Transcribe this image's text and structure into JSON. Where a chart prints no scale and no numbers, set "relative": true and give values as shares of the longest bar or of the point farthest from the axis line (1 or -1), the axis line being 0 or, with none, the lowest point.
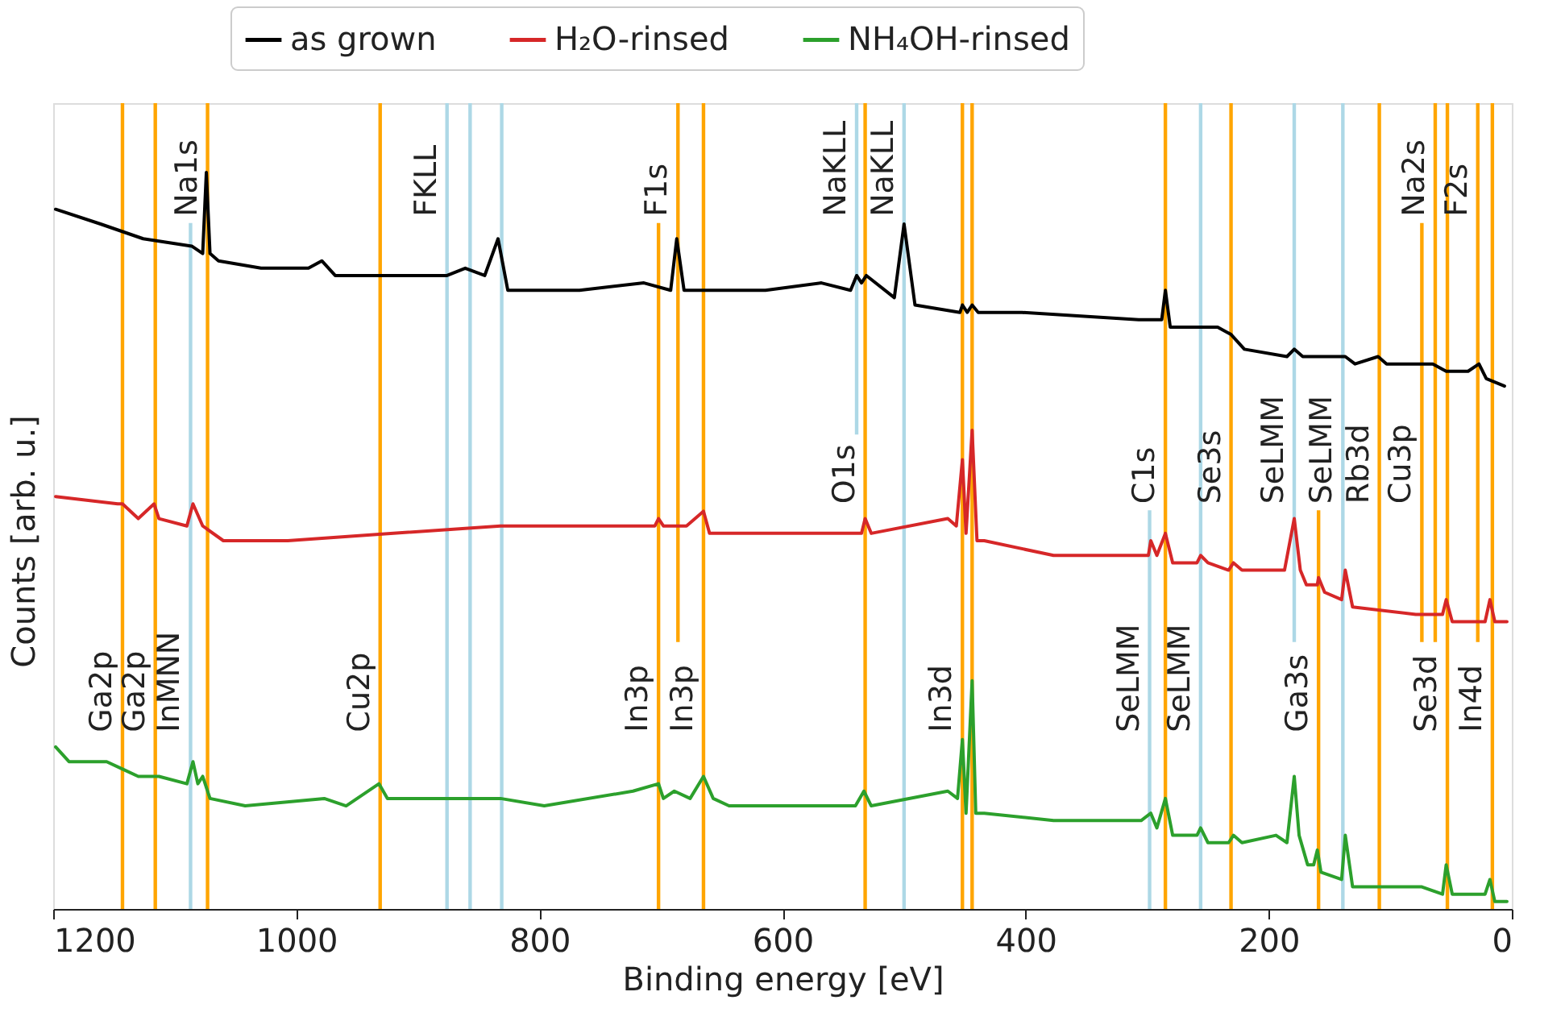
{
  "chart_data": {
    "type": "line",
    "relative": true,
    "xlabel": "Binding energy [eV]",
    "ylabel": "Counts [arb. u.]",
    "xlim": [
      1200,
      0
    ],
    "xticks": [
      1200,
      1000,
      800,
      600,
      400,
      200,
      0
    ],
    "grid": false,
    "legend": "top",
    "tick_labels": "x",
    "line_style": "solid",
    "marker": "none",
    "series": [
      {
        "name": "as grown",
        "color": "#000000",
        "x": [
          1198,
          1161,
          1126,
          1086,
          1077,
          1074,
          1071,
          1064,
          1029,
          990,
          979,
          968,
          920,
          876,
          861,
          845,
          834,
          826,
          767,
          714,
          692,
          687,
          681,
          614,
          568,
          544,
          539,
          535,
          531,
          508,
          500,
          491,
          454,
          452,
          448,
          444,
          439,
          403,
          307,
          288,
          285,
          281,
          242,
          231,
          220,
          185,
          179,
          172,
          137,
          129,
          110,
          103,
          65,
          54,
          36,
          27,
          21,
          6
        ],
        "values": [
          0.95,
          0.93,
          0.91,
          0.9,
          0.89,
          1.0,
          0.89,
          0.88,
          0.87,
          0.87,
          0.88,
          0.86,
          0.86,
          0.86,
          0.87,
          0.86,
          0.91,
          0.84,
          0.84,
          0.85,
          0.84,
          0.91,
          0.84,
          0.84,
          0.85,
          0.84,
          0.86,
          0.85,
          0.86,
          0.83,
          0.93,
          0.82,
          0.81,
          0.82,
          0.81,
          0.82,
          0.81,
          0.81,
          0.8,
          0.8,
          0.84,
          0.79,
          0.79,
          0.78,
          0.76,
          0.75,
          0.76,
          0.75,
          0.75,
          0.74,
          0.75,
          0.74,
          0.74,
          0.73,
          0.73,
          0.74,
          0.72,
          0.71
        ]
      },
      {
        "name": "H₂O-rinsed",
        "color": "#d62728",
        "x": [
          1198,
          1147,
          1143,
          1130,
          1117,
          1113,
          1090,
          1085,
          1077,
          1060,
          1007,
          920,
          832,
          745,
          705,
          702,
          698,
          679,
          665,
          660,
          614,
          535,
          532,
          527,
          464,
          457,
          452,
          449,
          444,
          440,
          434,
          377,
          299,
          297,
          292,
          285,
          279,
          259,
          256,
          250,
          233,
          229,
          222,
          187,
          179,
          174,
          169,
          160,
          159,
          154,
          140,
          137,
          131,
          79,
          70,
          57,
          54,
          49,
          22,
          18,
          14,
          4
        ],
        "values": [
          0.56,
          0.55,
          0.55,
          0.53,
          0.55,
          0.53,
          0.52,
          0.55,
          0.52,
          0.5,
          0.5,
          0.51,
          0.52,
          0.52,
          0.52,
          0.53,
          0.52,
          0.52,
          0.54,
          0.51,
          0.51,
          0.51,
          0.53,
          0.51,
          0.53,
          0.52,
          0.61,
          0.51,
          0.65,
          0.5,
          0.5,
          0.48,
          0.48,
          0.5,
          0.48,
          0.51,
          0.47,
          0.47,
          0.48,
          0.47,
          0.46,
          0.47,
          0.46,
          0.46,
          0.53,
          0.46,
          0.44,
          0.44,
          0.45,
          0.43,
          0.42,
          0.46,
          0.41,
          0.4,
          0.4,
          0.4,
          0.42,
          0.39,
          0.39,
          0.42,
          0.39,
          0.39
        ]
      },
      {
        "name": "NH₄OH-rinsed",
        "color": "#2ca02c",
        "x": [
          1198,
          1187,
          1156,
          1143,
          1130,
          1117,
          1113,
          1090,
          1085,
          1081,
          1077,
          1071,
          1042,
          977,
          959,
          932,
          925,
          832,
          796,
          723,
          702,
          698,
          689,
          676,
          665,
          657,
          644,
          614,
          540,
          533,
          527,
          464,
          456,
          452,
          449,
          444,
          441,
          434,
          377,
          305,
          297,
          292,
          285,
          279,
          259,
          256,
          250,
          233,
          229,
          222,
          194,
          185,
          179,
          175,
          168,
          163,
          160,
          157,
          140,
          137,
          131,
          109,
          74,
          57,
          54,
          49,
          22,
          18,
          14,
          4
        ],
        "values": [
          0.22,
          0.2,
          0.2,
          0.19,
          0.18,
          0.18,
          0.18,
          0.17,
          0.2,
          0.17,
          0.18,
          0.15,
          0.14,
          0.15,
          0.14,
          0.17,
          0.15,
          0.15,
          0.14,
          0.16,
          0.17,
          0.15,
          0.16,
          0.15,
          0.18,
          0.15,
          0.14,
          0.14,
          0.14,
          0.16,
          0.14,
          0.16,
          0.15,
          0.23,
          0.13,
          0.31,
          0.13,
          0.13,
          0.12,
          0.12,
          0.13,
          0.11,
          0.15,
          0.1,
          0.1,
          0.11,
          0.09,
          0.09,
          0.1,
          0.09,
          0.1,
          0.09,
          0.18,
          0.1,
          0.06,
          0.06,
          0.08,
          0.05,
          0.04,
          0.1,
          0.03,
          0.03,
          0.03,
          0.02,
          0.06,
          0.02,
          0.02,
          0.04,
          0.01,
          0.01
        ]
      }
    ],
    "ref_lines": [
      {
        "axis": "x",
        "value": 1143,
        "color": "#ffa500"
      },
      {
        "axis": "x",
        "value": 1116,
        "color": "#ffa500"
      },
      {
        "axis": "x",
        "value": 1087,
        "color": "#add8e6"
      },
      {
        "axis": "x",
        "value": 1073,
        "color": "#ffa500"
      },
      {
        "axis": "x",
        "value": 931,
        "color": "#ffa500"
      },
      {
        "axis": "x",
        "value": 876,
        "color": "#add8e6"
      },
      {
        "axis": "x",
        "value": 857,
        "color": "#add8e6"
      },
      {
        "axis": "x",
        "value": 831,
        "color": "#add8e6"
      },
      {
        "axis": "x",
        "value": 702,
        "color": "#ffa500"
      },
      {
        "axis": "x",
        "value": 686,
        "color": "#ffa500"
      },
      {
        "axis": "x",
        "value": 665,
        "color": "#ffa500"
      },
      {
        "axis": "x",
        "value": 539,
        "color": "#add8e6"
      },
      {
        "axis": "x",
        "value": 532,
        "color": "#ffa500"
      },
      {
        "axis": "x",
        "value": 500,
        "color": "#add8e6"
      },
      {
        "axis": "x",
        "value": 452,
        "color": "#ffa500"
      },
      {
        "axis": "x",
        "value": 444,
        "color": "#ffa500"
      },
      {
        "axis": "x",
        "value": 298,
        "color": "#add8e6"
      },
      {
        "axis": "x",
        "value": 285,
        "color": "#ffa500"
      },
      {
        "axis": "x",
        "value": 256,
        "color": "#add8e6"
      },
      {
        "axis": "x",
        "value": 231,
        "color": "#ffa500"
      },
      {
        "axis": "x",
        "value": 179,
        "color": "#add8e6"
      },
      {
        "axis": "x",
        "value": 159,
        "color": "#ffa500"
      },
      {
        "axis": "x",
        "value": 139,
        "color": "#add8e6"
      },
      {
        "axis": "x",
        "value": 109,
        "color": "#ffa500"
      },
      {
        "axis": "x",
        "value": 74,
        "color": "#ffa500"
      },
      {
        "axis": "x",
        "value": 63,
        "color": "#ffa500"
      },
      {
        "axis": "x",
        "value": 53,
        "color": "#ffa500"
      },
      {
        "axis": "x",
        "value": 28,
        "color": "#ffa500"
      },
      {
        "axis": "x",
        "value": 16,
        "color": "#ffa500"
      }
    ],
    "annotations": [
      {
        "text": "Na1s",
        "x": 1073,
        "y": 0.94
      },
      {
        "text": "FKLL",
        "x": 876,
        "y": 0.94
      },
      {
        "text": "F1s",
        "x": 686,
        "y": 0.94
      },
      {
        "text": "NaKLL",
        "x": 539,
        "y": 0.94
      },
      {
        "text": "NaKLL",
        "x": 500,
        "y": 0.94
      },
      {
        "text": "Na2s",
        "x": 63,
        "y": 0.94
      },
      {
        "text": "F2s",
        "x": 28,
        "y": 0.94
      },
      {
        "text": "O1s",
        "x": 532,
        "y": 0.55
      },
      {
        "text": "C1s",
        "x": 285,
        "y": 0.55
      },
      {
        "text": "Se3s",
        "x": 231,
        "y": 0.55
      },
      {
        "text": "SeLMM",
        "x": 179,
        "y": 0.55
      },
      {
        "text": "SeLMM",
        "x": 139,
        "y": 0.55
      },
      {
        "text": "Rb3d",
        "x": 109,
        "y": 0.55
      },
      {
        "text": "Cu3p",
        "x": 74,
        "y": 0.55
      },
      {
        "text": "Ga2p",
        "x": 1143,
        "y": 0.24
      },
      {
        "text": "Ga2p",
        "x": 1116,
        "y": 0.24
      },
      {
        "text": "InMNN",
        "x": 1087,
        "y": 0.24
      },
      {
        "text": "Cu2p",
        "x": 931,
        "y": 0.24
      },
      {
        "text": "In3p",
        "x": 702,
        "y": 0.24
      },
      {
        "text": "In3p",
        "x": 665,
        "y": 0.24
      },
      {
        "text": "In3d",
        "x": 452,
        "y": 0.24
      },
      {
        "text": "SeLMM",
        "x": 298,
        "y": 0.24
      },
      {
        "text": "SeLMM",
        "x": 256,
        "y": 0.24
      },
      {
        "text": "Ga3s",
        "x": 159,
        "y": 0.24
      },
      {
        "text": "Se3d",
        "x": 53,
        "y": 0.24
      },
      {
        "text": "In4d",
        "x": 16,
        "y": 0.24
      }
    ]
  }
}
